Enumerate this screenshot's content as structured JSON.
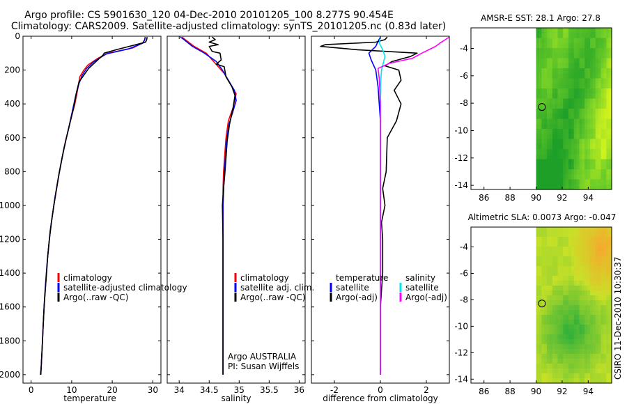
{
  "header": {
    "line1": "Argo profile: CS 5901630_120 04-Dec-2010 20101205_100 8.277S 90.454E",
    "line2": "Climatology: CARS2009. Satellite-adjusted climatology: synTS_20101205.nc (0.83d later)"
  },
  "stamp": "CSIRO 11-Dec-2010 10:30:37",
  "colors": {
    "climatology": "#ff0000",
    "satellite": "#0000ff",
    "argo": "#000000",
    "sat_salt": "#00e5ee",
    "argo_salt": "#ff00ff"
  },
  "chart_data": [
    {
      "type": "line",
      "title": "",
      "xlabel": "temperature",
      "ylabel": "",
      "xlim": [
        -2,
        32
      ],
      "ylim": [
        2050,
        0
      ],
      "xticks": [
        "0",
        "10",
        "20",
        "30"
      ],
      "yticks": [
        "0",
        "200",
        "400",
        "600",
        "800",
        "1000",
        "1200",
        "1400",
        "1600",
        "1800",
        "2000"
      ],
      "legend": [
        "climatology",
        "satellite-adjusted climatology",
        "Argo(..raw -QC)"
      ],
      "series": [
        {
          "name": "climatology",
          "points": [
            [
              28.2,
              5
            ],
            [
              28.0,
              20
            ],
            [
              27.5,
              40
            ],
            [
              25,
              70
            ],
            [
              19,
              100
            ],
            [
              16.5,
              130
            ],
            [
              14,
              170
            ],
            [
              13,
              200
            ],
            [
              12,
              240
            ],
            [
              11.6,
              300
            ],
            [
              10.8,
              400
            ],
            [
              9.7,
              500
            ],
            [
              8.7,
              600
            ],
            [
              7.8,
              700
            ],
            [
              7.0,
              800
            ],
            [
              6.3,
              900
            ],
            [
              5.6,
              1000
            ],
            [
              5.0,
              1100
            ],
            [
              4.5,
              1200
            ],
            [
              4.1,
              1300
            ],
            [
              3.8,
              1400
            ],
            [
              3.5,
              1500
            ],
            [
              3.2,
              1600
            ],
            [
              3.0,
              1700
            ],
            [
              2.8,
              1800
            ],
            [
              2.6,
              1900
            ],
            [
              2.4,
              2000
            ]
          ]
        },
        {
          "name": "satellite-adjusted climatology",
          "points": [
            [
              28.1,
              5
            ],
            [
              28.0,
              20
            ],
            [
              27.6,
              40
            ],
            [
              24,
              75
            ],
            [
              18.5,
              105
            ],
            [
              15.5,
              150
            ],
            [
              13.7,
              190
            ],
            [
              12.6,
              230
            ],
            [
              11.8,
              280
            ],
            [
              11.0,
              350
            ],
            [
              10.1,
              450
            ],
            [
              9.2,
              550
            ],
            [
              8.2,
              650
            ],
            [
              7.4,
              750
            ],
            [
              6.6,
              850
            ],
            [
              5.9,
              950
            ],
            [
              5.3,
              1050
            ],
            [
              4.7,
              1150
            ],
            [
              4.3,
              1250
            ],
            [
              3.9,
              1350
            ],
            [
              3.6,
              1450
            ],
            [
              3.3,
              1550
            ],
            [
              3.1,
              1650
            ],
            [
              2.9,
              1750
            ],
            [
              2.7,
              1850
            ],
            [
              2.5,
              1950
            ],
            [
              2.3,
              2000
            ]
          ]
        },
        {
          "name": "Argo(..raw -QC)",
          "points": [
            [
              28.6,
              5
            ],
            [
              28.5,
              20
            ],
            [
              28.2,
              35
            ],
            [
              25,
              55
            ],
            [
              21,
              80
            ],
            [
              18,
              100
            ],
            [
              17.8,
              110
            ],
            [
              16,
              150
            ],
            [
              14.2,
              190
            ],
            [
              13,
              230
            ],
            [
              11.8,
              270
            ],
            [
              11.2,
              330
            ],
            [
              10.5,
              420
            ],
            [
              9.6,
              510
            ],
            [
              8.6,
              610
            ],
            [
              7.7,
              710
            ],
            [
              6.9,
              810
            ],
            [
              6.2,
              910
            ],
            [
              5.6,
              1000
            ],
            [
              5.0,
              1100
            ],
            [
              4.5,
              1200
            ],
            [
              4.1,
              1300
            ],
            [
              3.8,
              1400
            ],
            [
              3.5,
              1500
            ],
            [
              3.2,
              1600
            ],
            [
              3.0,
              1700
            ],
            [
              2.8,
              1800
            ],
            [
              2.6,
              1900
            ],
            [
              2.4,
              2000
            ]
          ]
        }
      ]
    },
    {
      "type": "line",
      "title": "",
      "xlabel": "salinity",
      "ylabel": "",
      "xlim": [
        33.8,
        36.1
      ],
      "ylim": [
        2050,
        0
      ],
      "xticks": [
        "34",
        "34.5",
        "35",
        "35.5",
        "36"
      ],
      "legend": [
        "climatology",
        "satellite adj. clim.",
        "Argo(..raw -QC)"
      ],
      "annotation": [
        "Argo AUSTRALIA",
        "PI: Susan Wijffels"
      ],
      "series": [
        {
          "name": "climatology",
          "points": [
            [
              34.05,
              5
            ],
            [
              34.1,
              20
            ],
            [
              34.25,
              60
            ],
            [
              34.45,
              100
            ],
            [
              34.6,
              160
            ],
            [
              34.75,
              220
            ],
            [
              34.85,
              280
            ],
            [
              34.95,
              340
            ],
            [
              34.9,
              420
            ],
            [
              34.82,
              500
            ],
            [
              34.78,
              600
            ],
            [
              34.76,
              700
            ],
            [
              34.74,
              800
            ],
            [
              34.73,
              900
            ],
            [
              34.73,
              1000
            ],
            [
              34.73,
              1200
            ],
            [
              34.73,
              1400
            ],
            [
              34.73,
              1600
            ],
            [
              34.73,
              1800
            ],
            [
              34.73,
              2000
            ]
          ]
        },
        {
          "name": "satellite adj. clim.",
          "points": [
            [
              34.02,
              5
            ],
            [
              34.08,
              20
            ],
            [
              34.22,
              60
            ],
            [
              34.42,
              100
            ],
            [
              34.62,
              150
            ],
            [
              34.72,
              200
            ],
            [
              34.82,
              260
            ],
            [
              34.92,
              320
            ],
            [
              34.95,
              380
            ],
            [
              34.9,
              440
            ],
            [
              34.83,
              520
            ],
            [
              34.79,
              620
            ],
            [
              34.77,
              720
            ],
            [
              34.75,
              820
            ],
            [
              34.74,
              920
            ],
            [
              34.73,
              1000
            ],
            [
              34.73,
              1200
            ],
            [
              34.73,
              1400
            ],
            [
              34.73,
              1600
            ],
            [
              34.73,
              1800
            ],
            [
              34.73,
              2000
            ]
          ]
        },
        {
          "name": "Argo(..raw -QC)",
          "points": [
            [
              34.55,
              5
            ],
            [
              34.6,
              20
            ],
            [
              34.5,
              35
            ],
            [
              34.65,
              50
            ],
            [
              34.5,
              60
            ],
            [
              34.55,
              90
            ],
            [
              34.68,
              100
            ],
            [
              34.7,
              140
            ],
            [
              34.62,
              165
            ],
            [
              34.75,
              180
            ],
            [
              34.78,
              240
            ],
            [
              34.88,
              300
            ],
            [
              34.93,
              350
            ],
            [
              34.9,
              420
            ],
            [
              34.84,
              520
            ],
            [
              34.8,
              620
            ],
            [
              34.78,
              720
            ],
            [
              34.76,
              820
            ],
            [
              34.74,
              900
            ],
            [
              34.72,
              1000
            ],
            [
              34.73,
              1200
            ],
            [
              34.73,
              1400
            ],
            [
              34.73,
              1600
            ],
            [
              34.73,
              1800
            ],
            [
              34.73,
              2000
            ]
          ]
        }
      ]
    },
    {
      "type": "line",
      "title": "",
      "xlabel": "difference from climatology",
      "ylabel": "",
      "xlim": [
        -3,
        3
      ],
      "ylim": [
        2050,
        0
      ],
      "xticks": [
        "-2",
        "0",
        "2"
      ],
      "legend": [
        {
          "group": "temperature",
          "items": [
            "satellite",
            "Argo(-adj)"
          ]
        },
        {
          "group": "salinity",
          "items": [
            "satellite",
            "Argo(-adj)"
          ]
        }
      ],
      "series": [
        {
          "name": "temperature satellite",
          "points": [
            [
              0,
              5
            ],
            [
              -0.1,
              30
            ],
            [
              -0.2,
              60
            ],
            [
              -0.5,
              100
            ],
            [
              -0.4,
              140
            ],
            [
              -0.2,
              200
            ],
            [
              -0.1,
              300
            ],
            [
              0,
              500
            ],
            [
              0,
              800
            ],
            [
              0,
              1000
            ],
            [
              0,
              1400
            ],
            [
              0,
              2000
            ]
          ]
        },
        {
          "name": "temperature Argo(-adj)",
          "points": [
            [
              0.3,
              5
            ],
            [
              0.2,
              20
            ],
            [
              -0.2,
              35
            ],
            [
              -2.4,
              50
            ],
            [
              -2.6,
              60
            ],
            [
              -1,
              80
            ],
            [
              1.6,
              100
            ],
            [
              1.3,
              120
            ],
            [
              0.5,
              150
            ],
            [
              0.2,
              175
            ],
            [
              0.8,
              200
            ],
            [
              0.9,
              260
            ],
            [
              0.6,
              320
            ],
            [
              0.9,
              400
            ],
            [
              0.8,
              450
            ],
            [
              0.7,
              500
            ],
            [
              0.3,
              600
            ],
            [
              0.25,
              800
            ],
            [
              0.1,
              900
            ],
            [
              0.2,
              1000
            ],
            [
              0.05,
              1100
            ],
            [
              0.1,
              1200
            ],
            [
              0.1,
              1400
            ],
            [
              0,
              1600
            ],
            [
              0,
              1800
            ],
            [
              0,
              2000
            ]
          ]
        },
        {
          "name": "salinity satellite",
          "points": [
            [
              0,
              5
            ],
            [
              -0.05,
              40
            ],
            [
              0.1,
              80
            ],
            [
              0.2,
              120
            ],
            [
              0.05,
              200
            ],
            [
              0,
              300
            ],
            [
              0,
              800
            ],
            [
              0,
              2000
            ]
          ]
        },
        {
          "name": "salinity Argo(-adj)",
          "points": [
            [
              3,
              5
            ],
            [
              2.6,
              40
            ],
            [
              2.4,
              60
            ],
            [
              1.8,
              100
            ],
            [
              1.4,
              130
            ],
            [
              0.4,
              160
            ],
            [
              -0.1,
              190
            ],
            [
              -0.05,
              250
            ],
            [
              0,
              400
            ],
            [
              0,
              800
            ],
            [
              0,
              1200
            ],
            [
              0,
              2000
            ]
          ]
        }
      ]
    },
    {
      "type": "heatmap",
      "title": "AMSR-E SST: 28.1 Argo: 27.8",
      "xlim": [
        85,
        95.8
      ],
      "ylim": [
        -14.3,
        -2.5
      ],
      "xticks": [
        "86",
        "88",
        "90",
        "92",
        "94"
      ],
      "yticks": [
        "-4",
        "-6",
        "-8",
        "-10",
        "-12",
        "-14"
      ],
      "data_lon_range": [
        90,
        95.8
      ],
      "marker": [
        90.45,
        -8.28
      ]
    },
    {
      "type": "heatmap",
      "title": "Altimetric SLA: 0.0073 Argo: -0.047",
      "xlim": [
        85,
        95.8
      ],
      "ylim": [
        -14.3,
        -2.5
      ],
      "xticks": [
        "86",
        "88",
        "90",
        "92",
        "94"
      ],
      "yticks": [
        "-4",
        "-6",
        "-8",
        "-10",
        "-12",
        "-14"
      ],
      "data_lon_range": [
        90,
        95.8
      ],
      "marker": [
        90.45,
        -8.28
      ]
    }
  ]
}
